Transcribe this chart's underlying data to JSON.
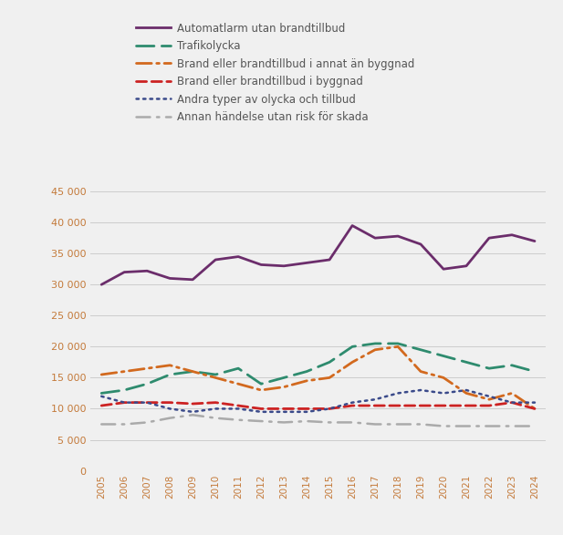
{
  "years": [
    2005,
    2006,
    2007,
    2008,
    2009,
    2010,
    2011,
    2012,
    2013,
    2014,
    2015,
    2016,
    2017,
    2018,
    2019,
    2020,
    2021,
    2022,
    2023,
    2024
  ],
  "series": {
    "Automatlarm utan brandtillbud": [
      30000,
      32000,
      32200,
      31000,
      30800,
      34000,
      34500,
      33200,
      33000,
      33500,
      34000,
      39500,
      37500,
      37800,
      36500,
      32500,
      33000,
      37500,
      38000,
      37000
    ],
    "Trafikolycka": [
      12500,
      13000,
      14000,
      15500,
      16000,
      15500,
      16500,
      14000,
      15000,
      16000,
      17500,
      20000,
      20500,
      20500,
      19500,
      18500,
      17500,
      16500,
      17000,
      16000
    ],
    "Brand eller brandtillbud i annat än byggnad": [
      15500,
      16000,
      16500,
      17000,
      16000,
      15000,
      14000,
      13000,
      13500,
      14500,
      15000,
      17500,
      19500,
      20000,
      16000,
      15000,
      12500,
      11500,
      12500,
      10000
    ],
    "Brand eller brandtillbud i byggnad": [
      10500,
      11000,
      11000,
      11000,
      10800,
      11000,
      10500,
      10000,
      10000,
      10000,
      10000,
      10500,
      10500,
      10500,
      10500,
      10500,
      10500,
      10500,
      11000,
      10000
    ],
    "Andra typer av olycka och tillbud": [
      12000,
      11000,
      11000,
      10000,
      9500,
      10000,
      10000,
      9500,
      9500,
      9500,
      10000,
      11000,
      11500,
      12500,
      13000,
      12500,
      13000,
      12000,
      11000,
      11000
    ],
    "Annan händelse utan risk för skada": [
      7500,
      7500,
      7800,
      8500,
      9000,
      8500,
      8200,
      8000,
      7800,
      8000,
      7800,
      7800,
      7500,
      7500,
      7500,
      7200,
      7200,
      7200,
      7200,
      7200
    ]
  },
  "colors": {
    "Automatlarm utan brandtillbud": "#6b2d6b",
    "Trafikolycka": "#2e8b6e",
    "Brand eller brandtillbud i annat än byggnad": "#d2691e",
    "Brand eller brandtillbud i byggnad": "#cc2222",
    "Andra typer av olycka och tillbud": "#3a4a8a",
    "Annan händelse utan risk för skada": "#aaaaaa"
  },
  "ylim": [
    0,
    45000
  ],
  "yticks": [
    0,
    5000,
    10000,
    15000,
    20000,
    25000,
    30000,
    35000,
    40000,
    45000
  ],
  "ytick_labels": [
    "0",
    "5 000",
    "10 000",
    "15 000",
    "20 000",
    "25 000",
    "30 000",
    "35 000",
    "40 000",
    "45 000"
  ],
  "background_color": "#f0f0f0",
  "grid_color": "#cccccc",
  "text_color": "#555555",
  "label_color": "#c47a3a"
}
